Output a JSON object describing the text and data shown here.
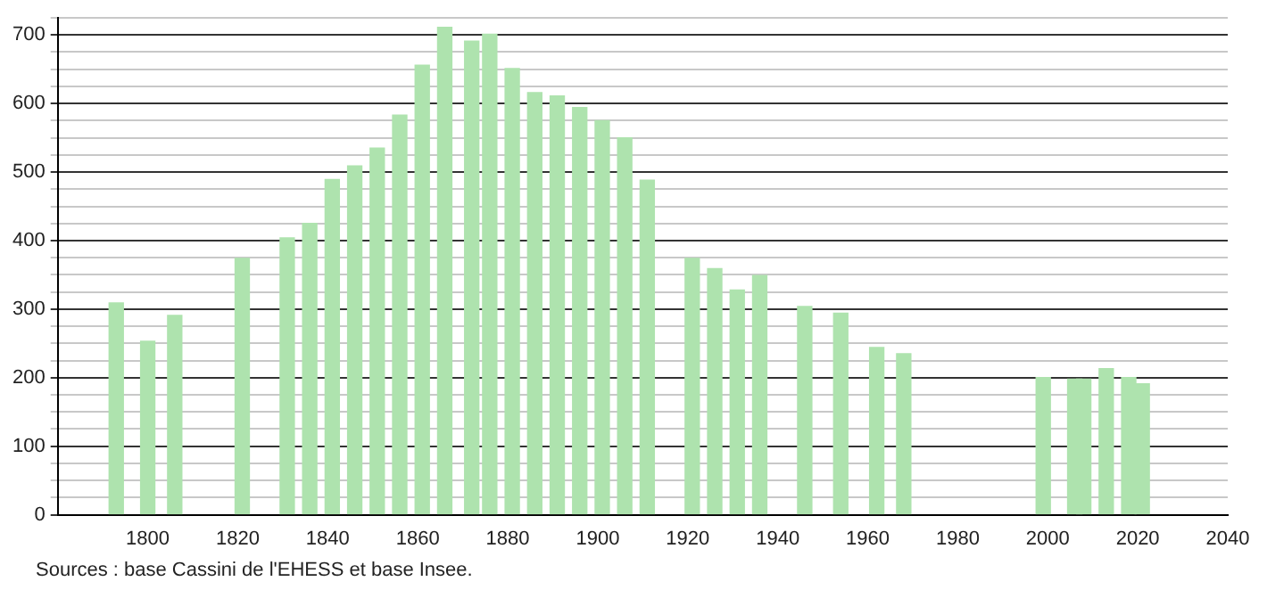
{
  "chart_data": {
    "type": "bar",
    "x": [
      1793,
      1800,
      1806,
      1821,
      1831,
      1836,
      1841,
      1846,
      1851,
      1856,
      1861,
      1866,
      1872,
      1876,
      1881,
      1886,
      1891,
      1896,
      1901,
      1906,
      1911,
      1921,
      1926,
      1931,
      1936,
      1946,
      1954,
      1962,
      1968,
      1999,
      2006,
      2008,
      2013,
      2018,
      2021
    ],
    "values": [
      309,
      253,
      291,
      374,
      404,
      425,
      489,
      509,
      535,
      583,
      656,
      711,
      691,
      701,
      651,
      616,
      611,
      594,
      575,
      550,
      488,
      374,
      359,
      328,
      349,
      304,
      294,
      244,
      235,
      200,
      198,
      198,
      213,
      200,
      191
    ],
    "color": "#aee3ae",
    "xlim": [
      1780,
      2040
    ],
    "xticks": [
      1800,
      1820,
      1840,
      1860,
      1880,
      1900,
      1920,
      1940,
      1960,
      1980,
      2000,
      2020,
      2040
    ],
    "ylim": [
      0,
      725
    ],
    "yticks": [
      0,
      {
        "value": 25,
        "label": null
      },
      {
        "value": 50,
        "label": null
      },
      {
        "value": 75,
        "label": null
      },
      100,
      {
        "value": 125,
        "label": null
      },
      {
        "value": 150,
        "label": null
      },
      {
        "value": 175,
        "label": null
      },
      200,
      {
        "value": 225,
        "label": null
      },
      {
        "value": 250,
        "label": null
      },
      {
        "value": 275,
        "label": null
      },
      300,
      {
        "value": 325,
        "label": null
      },
      {
        "value": 350,
        "label": null
      },
      {
        "value": 375,
        "label": null
      },
      400,
      {
        "value": 425,
        "label": null
      },
      {
        "value": 450,
        "label": null
      },
      {
        "value": 475,
        "label": null
      },
      500,
      {
        "value": 525,
        "label": null
      },
      {
        "value": 550,
        "label": null
      },
      {
        "value": 575,
        "label": null
      },
      600,
      {
        "value": 625,
        "label": null
      },
      {
        "value": 650,
        "label": null
      },
      {
        "value": 675,
        "label": null
      },
      700,
      {
        "value": 725,
        "label": null
      }
    ],
    "grid": "y",
    "legend": false,
    "annotations": [
      "Sources : base Cassini de l'EHESS et base Insee."
    ]
  }
}
